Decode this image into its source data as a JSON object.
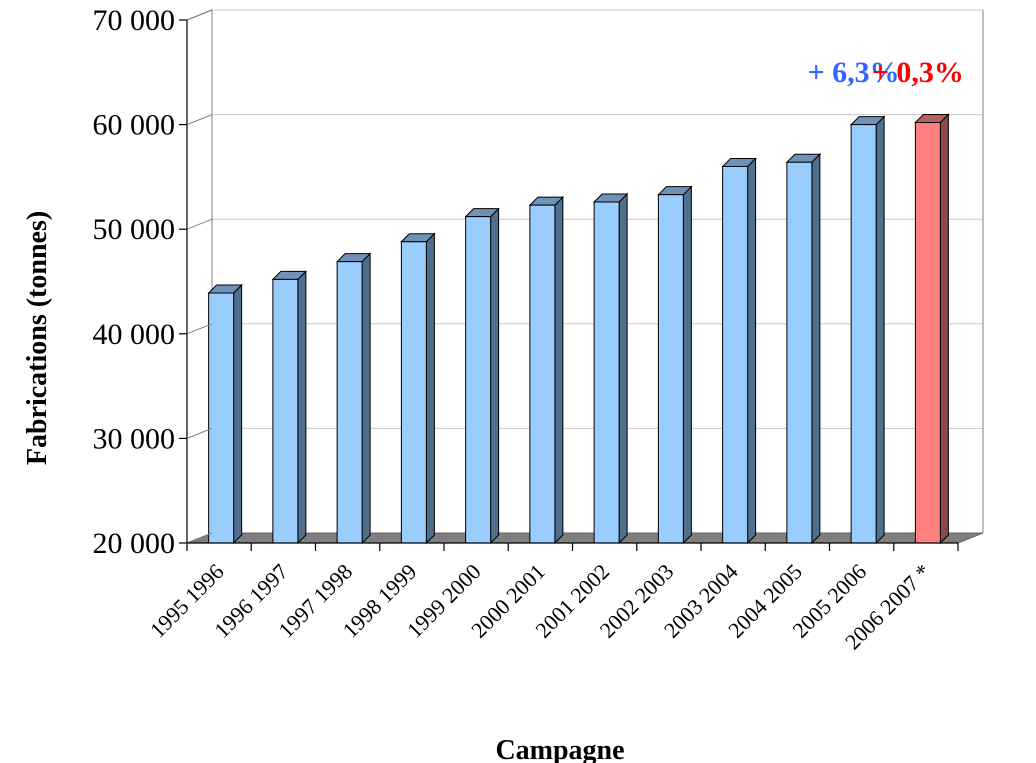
{
  "chart_data": {
    "type": "bar",
    "title": "",
    "xlabel": "Campagne",
    "ylabel": "Fabrications (tonnes)",
    "ylim": [
      20000,
      70000
    ],
    "yticks": [
      20000,
      30000,
      40000,
      50000,
      60000,
      70000
    ],
    "ytick_labels": [
      "20 000",
      "30 000",
      "40 000",
      "50 000",
      "60 000",
      "70 000"
    ],
    "grid": true,
    "legend": "none",
    "categories": [
      "1995 1996",
      "1996 1997",
      "1997 1998",
      "1998 1999",
      "1999 2000",
      "2000 2001",
      "2001 2002",
      "2002 2003",
      "2003 2004",
      "2004 2005",
      "2005 2006",
      "2006 2007 *"
    ],
    "values": [
      43900,
      45200,
      46900,
      48800,
      51200,
      52300,
      52600,
      53300,
      56000,
      56400,
      60000,
      60200
    ],
    "colors": {
      "normal_front": "#99ccff",
      "normal_side": "#4f6f8f",
      "normal_top": "#6f93b8",
      "highlight_front": "#ff8080",
      "highlight_side": "#8f4848",
      "highlight_top": "#b86060",
      "floor": "#7f7f7f",
      "annotation_blue": "#3366ff",
      "annotation_red": "#ff0000"
    },
    "highlight_index": 11,
    "annotations": [
      {
        "text": "+ 6,3%",
        "category_index": 10,
        "color": "#3366ff"
      },
      {
        "text": "+ 0,3%",
        "category_index": 11,
        "color": "#ff0000"
      }
    ]
  }
}
